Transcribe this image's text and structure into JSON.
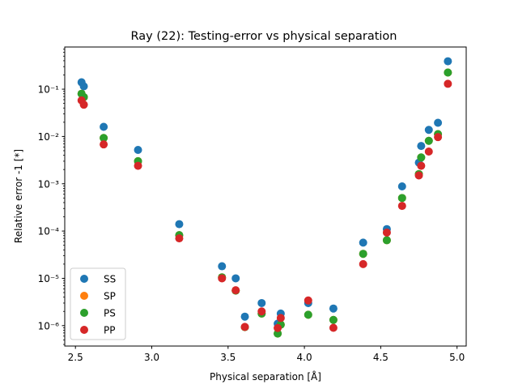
{
  "chart_data": {
    "type": "scatter",
    "title": "Ray (22): Testing-error vs physical separation",
    "xlabel": "Physical separation [Å]",
    "ylabel": "Relative error -1 [*]",
    "xlim": [
      2.43,
      5.06
    ],
    "ylim": [
      3.7e-07,
      0.78
    ],
    "yscale": "log",
    "xticks": [
      2.5,
      3.0,
      3.5,
      4.0,
      4.5,
      5.0
    ],
    "xtick_labels": [
      "2.5",
      "3.0",
      "3.5",
      "4.0",
      "4.5",
      "5.0"
    ],
    "yticks": [
      1e-06,
      1e-05,
      0.0001,
      0.001,
      0.01,
      0.1
    ],
    "ytick_labels": [
      "10⁻⁶",
      "10⁻⁵",
      "10⁻⁴",
      "10⁻³",
      "10⁻²",
      "10⁻¹"
    ],
    "grid": false,
    "legend_position": "lower-left",
    "x": [
      2.54,
      2.555,
      2.685,
      2.91,
      3.18,
      3.46,
      3.55,
      3.61,
      3.72,
      3.825,
      3.845,
      4.025,
      4.19,
      4.385,
      4.54,
      4.64,
      4.75,
      4.765,
      4.815,
      4.875,
      4.94
    ],
    "series": [
      {
        "name": "SS",
        "color": "#1f77b4",
        "values": [
          0.14,
          0.115,
          0.016,
          0.0052,
          0.00014,
          1.8e-05,
          1e-05,
          1.55e-06,
          3e-06,
          1.1e-06,
          1.8e-06,
          3e-06,
          2.3e-06,
          5.7e-05,
          0.00011,
          0.00088,
          0.0028,
          0.0063,
          0.0138,
          0.0195,
          0.39
        ]
      },
      {
        "name": "SP",
        "color": "#ff7f0e",
        "values": [
          0.08,
          0.068,
          0.0093,
          0.003,
          8.2e-05,
          1.05e-05,
          5.5e-06,
          9.3e-07,
          1.8e-06,
          6.8e-07,
          1.05e-06,
          1.7e-06,
          1.32e-06,
          3.3e-05,
          6.4e-05,
          0.0005,
          0.0016,
          0.0036,
          0.0081,
          0.0112,
          0.225
        ]
      },
      {
        "name": "PS",
        "color": "#2ca02c",
        "values": [
          0.08,
          0.068,
          0.0093,
          0.003,
          8.2e-05,
          1.05e-05,
          5.5e-06,
          9.3e-07,
          1.8e-06,
          6.8e-07,
          1.05e-06,
          1.7e-06,
          1.32e-06,
          3.3e-05,
          6.4e-05,
          0.0005,
          0.0016,
          0.0036,
          0.0081,
          0.0112,
          0.225
        ]
      },
      {
        "name": "PP",
        "color": "#d62728",
        "values": [
          0.058,
          0.047,
          0.0068,
          0.0024,
          7e-05,
          1e-05,
          5.6e-06,
          9.4e-07,
          2e-06,
          8.9e-07,
          1.45e-06,
          3.4e-06,
          9e-07,
          2e-05,
          9.3e-05,
          0.00034,
          0.0015,
          0.0024,
          0.0048,
          0.0097,
          0.13
        ]
      }
    ]
  }
}
